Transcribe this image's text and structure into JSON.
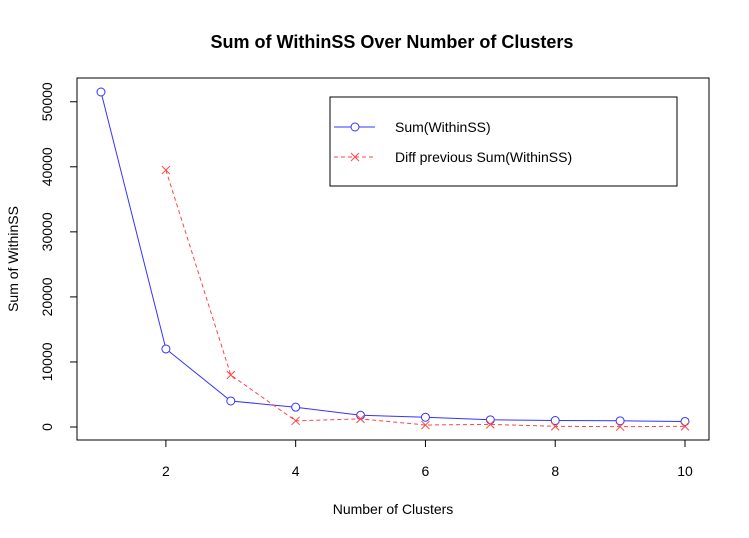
{
  "chart_data": {
    "type": "line",
    "title": "Sum of WithinSS Over Number of Clusters",
    "xlabel": "Number of Clusters",
    "ylabel": "Sum of WithinSS",
    "xlim": [
      1,
      10
    ],
    "ylim": [
      0,
      51500
    ],
    "x_ticks": [
      2,
      4,
      6,
      8,
      10
    ],
    "y_ticks": [
      0,
      10000,
      20000,
      30000,
      40000,
      50000
    ],
    "legend_position": "top-right",
    "series": [
      {
        "name": "Sum(WithinSS)",
        "color": "#3333ff",
        "marker": "circle",
        "line_style": "solid",
        "x": [
          1,
          2,
          3,
          4,
          5,
          6,
          7,
          8,
          9,
          10
        ],
        "values": [
          51500,
          12000,
          4000,
          3050,
          1800,
          1500,
          1100,
          1000,
          950,
          850
        ]
      },
      {
        "name": "Diff previous Sum(WithinSS)",
        "color": "#ff4444",
        "marker": "x",
        "line_style": "dashed",
        "x": [
          2,
          3,
          4,
          5,
          6,
          7,
          8,
          9,
          10
        ],
        "values": [
          39500,
          8000,
          950,
          1250,
          300,
          400,
          100,
          50,
          100
        ]
      }
    ]
  }
}
